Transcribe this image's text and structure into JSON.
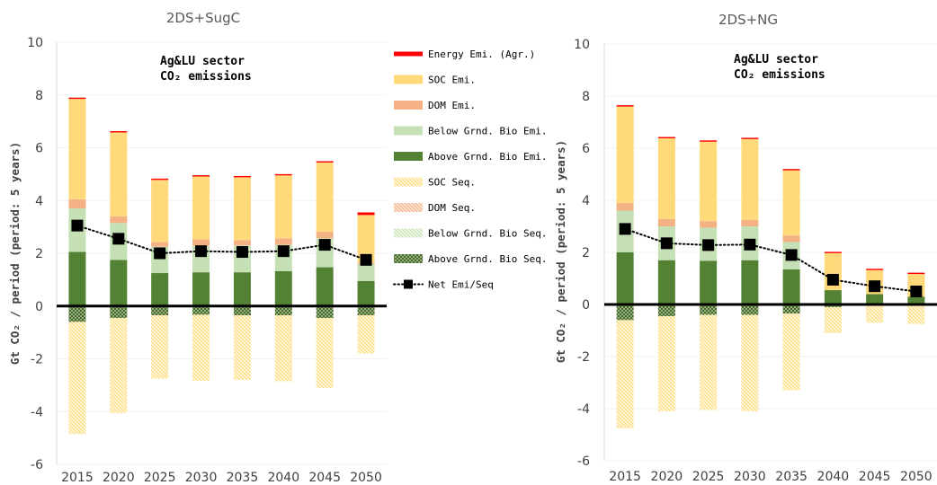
{
  "legend": [
    {
      "key": "energy",
      "label": "Energy Emi. (Agr.)",
      "kind": "solid"
    },
    {
      "key": "soc_emi",
      "label": "SOC Emi.",
      "kind": "solid"
    },
    {
      "key": "dom_emi",
      "label": "DOM Emi.",
      "kind": "solid"
    },
    {
      "key": "bg_emi",
      "label": "Below Grnd. Bio Emi.",
      "kind": "solid"
    },
    {
      "key": "ag_emi",
      "label": "Above Grnd. Bio Emi.",
      "kind": "solid"
    },
    {
      "key": "soc_seq",
      "label": "SOC Seq.",
      "kind": "hatch"
    },
    {
      "key": "dom_seq",
      "label": "DOM Seq.",
      "kind": "hatch"
    },
    {
      "key": "bg_seq",
      "label": "Below Grnd. Bio Seq.",
      "kind": "hatch"
    },
    {
      "key": "ag_seq",
      "label": "Above Grnd. Bio Seq.",
      "kind": "cross"
    },
    {
      "key": "net",
      "label": "Net Emi/Seq",
      "kind": "marker"
    }
  ],
  "colors": {
    "energy": "#ff0000",
    "soc_emi": "#ffd97a",
    "dom_emi": "#f4b183",
    "bg_emi": "#c5e0b4",
    "ag_emi": "#548235",
    "soc_seq": "#ffe8a8",
    "dom_seq": "#f8cbad",
    "bg_seq": "#dcedc8",
    "ag_seq": "#548235",
    "net": "#000000",
    "axis": "#000000",
    "grid": "#d9d9d9",
    "text": "#404040"
  },
  "chart_data": [
    {
      "type": "bar",
      "title": "2DS+SugC",
      "annotation": [
        "Ag&LU sector",
        "CO₂ emissions"
      ],
      "ylabel": "Gt CO₂ / period (period: 5 years)",
      "ylim": [
        -6,
        10
      ],
      "yticks": [
        -6,
        -4,
        -2,
        0,
        2,
        4,
        6,
        8,
        10
      ],
      "categories": [
        "2015",
        "2020",
        "2025",
        "2030",
        "2035",
        "2040",
        "2045",
        "2050"
      ],
      "series": [
        {
          "key": "ag_emi",
          "name": "Above Grnd. Bio Emi.",
          "values": [
            2.05,
            1.75,
            1.25,
            1.28,
            1.28,
            1.32,
            1.47,
            0.95
          ]
        },
        {
          "key": "bg_emi",
          "name": "Below Grnd. Bio Emi.",
          "values": [
            1.65,
            1.4,
            1.0,
            1.0,
            1.02,
            1.0,
            1.1,
            0.65
          ]
        },
        {
          "key": "dom_emi",
          "name": "DOM Emi.",
          "values": [
            0.35,
            0.25,
            0.18,
            0.25,
            0.2,
            0.25,
            0.25,
            0.05
          ]
        },
        {
          "key": "soc_emi",
          "name": "SOC Emi.",
          "values": [
            3.8,
            3.18,
            2.35,
            2.38,
            2.38,
            2.38,
            2.62,
            1.8
          ]
        },
        {
          "key": "energy",
          "name": "Energy Emi. (Agr.)",
          "values": [
            0.05,
            0.05,
            0.05,
            0.05,
            0.05,
            0.05,
            0.05,
            0.1
          ]
        },
        {
          "key": "ag_seq",
          "name": "Above Grnd. Bio Seq.",
          "values": [
            -0.6,
            -0.45,
            -0.35,
            -0.33,
            -0.35,
            -0.35,
            -0.45,
            -0.35
          ]
        },
        {
          "key": "bg_seq",
          "name": "Below Grnd. Bio Seq.",
          "values": [
            0,
            0,
            0,
            0,
            0,
            0,
            0,
            0
          ]
        },
        {
          "key": "dom_seq",
          "name": "DOM Seq.",
          "values": [
            0,
            0,
            0,
            0,
            0,
            0,
            0,
            0
          ]
        },
        {
          "key": "soc_seq",
          "name": "SOC Seq.",
          "values": [
            -4.25,
            -3.6,
            -2.4,
            -2.5,
            -2.45,
            -2.5,
            -2.65,
            -1.45
          ]
        }
      ],
      "net": [
        3.05,
        2.55,
        2.0,
        2.08,
        2.05,
        2.08,
        2.32,
        1.75
      ]
    },
    {
      "type": "bar",
      "title": "2DS+NG",
      "annotation": [
        "Ag&LU sector",
        "CO₂ emissions"
      ],
      "ylabel": "Gt CO₂ / period (period: 5 years)",
      "ylim": [
        -6,
        10
      ],
      "yticks": [
        -6,
        -4,
        -2,
        0,
        2,
        4,
        6,
        8,
        10
      ],
      "categories": [
        "2015",
        "2020",
        "2025",
        "2030",
        "2035",
        "2040",
        "2045",
        "2050"
      ],
      "series": [
        {
          "key": "ag_emi",
          "name": "Above Grnd. Bio Emi.",
          "values": [
            2.0,
            1.7,
            1.68,
            1.7,
            1.35,
            0.55,
            0.4,
            0.3
          ]
        },
        {
          "key": "bg_emi",
          "name": "Below Grnd. Bio Emi.",
          "values": [
            1.6,
            1.3,
            1.27,
            1.3,
            1.05,
            0.0,
            0.0,
            0.0
          ]
        },
        {
          "key": "dom_emi",
          "name": "DOM Emi.",
          "values": [
            0.3,
            0.28,
            0.25,
            0.25,
            0.25,
            0.0,
            0.0,
            0.0
          ]
        },
        {
          "key": "soc_emi",
          "name": "SOC Emi.",
          "values": [
            3.7,
            3.1,
            3.05,
            3.1,
            2.5,
            1.42,
            0.92,
            0.87
          ]
        },
        {
          "key": "energy",
          "name": "Energy Emi. (Agr.)",
          "values": [
            0.05,
            0.05,
            0.05,
            0.05,
            0.05,
            0.05,
            0.05,
            0.05
          ]
        },
        {
          "key": "ag_seq",
          "name": "Above Grnd. Bio Seq.",
          "values": [
            -0.6,
            -0.45,
            -0.4,
            -0.4,
            -0.35,
            -0.1,
            -0.05,
            -0.05
          ]
        },
        {
          "key": "bg_seq",
          "name": "Below Grnd. Bio Seq.",
          "values": [
            0,
            0,
            0,
            0,
            0,
            0,
            0,
            0
          ]
        },
        {
          "key": "dom_seq",
          "name": "DOM Seq.",
          "values": [
            0,
            0,
            0,
            0,
            0,
            0,
            0,
            0
          ]
        },
        {
          "key": "soc_seq",
          "name": "SOC Seq.",
          "values": [
            -4.15,
            -3.65,
            -3.65,
            -3.7,
            -2.95,
            -1.0,
            -0.65,
            -0.7
          ]
        }
      ],
      "net": [
        2.9,
        2.35,
        2.28,
        2.3,
        1.9,
        0.95,
        0.7,
        0.5
      ]
    }
  ]
}
